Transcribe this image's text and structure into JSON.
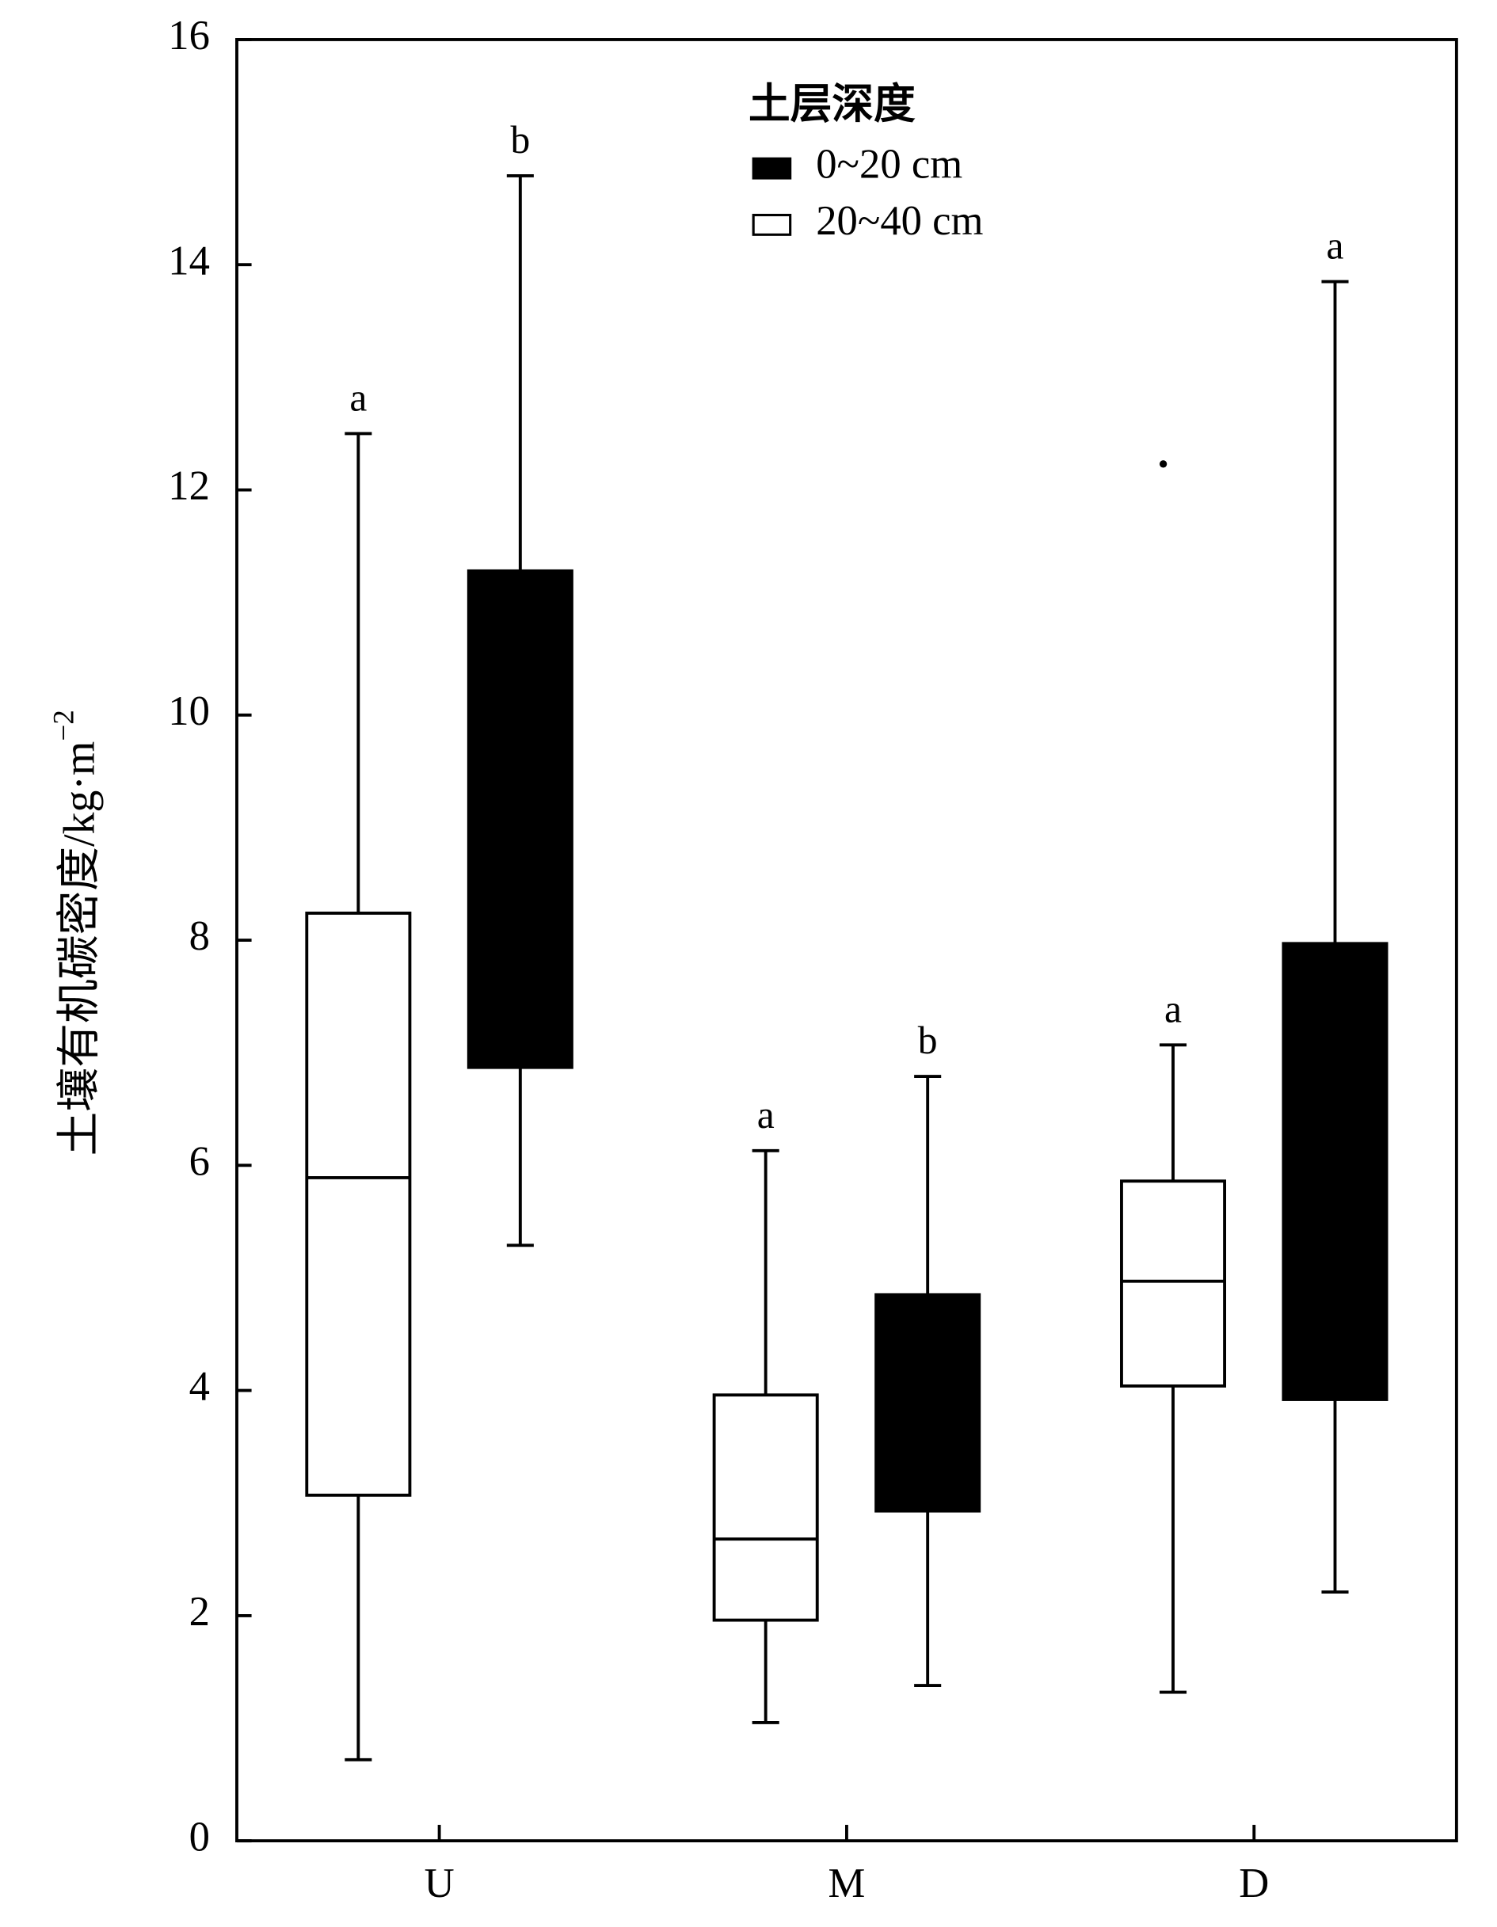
{
  "chart_data": {
    "type": "box",
    "y_label": "土壤有机碳密度/kg·m",
    "y_label_sup": "−2",
    "legend_title": "土层深度",
    "categories": [
      "U",
      "M",
      "D"
    ],
    "ylim": [
      0,
      16
    ],
    "yticks": [
      0,
      2,
      4,
      6,
      8,
      10,
      12,
      14,
      16
    ],
    "series": [
      {
        "name": "0~20 cm",
        "color": "#000000",
        "whisker_low": [
          5.29,
          1.38,
          2.21
        ],
        "q1": [
          6.87,
          2.93,
          3.92
        ],
        "median": [
          null,
          null,
          null
        ],
        "q3": [
          11.28,
          4.85,
          7.97
        ],
        "whisker_high": [
          14.79,
          6.79,
          13.85
        ],
        "outliers": [
          [],
          [],
          []
        ],
        "letters": [
          "b",
          "b",
          "a"
        ]
      },
      {
        "name": "20~40 cm",
        "color": "#ffffff",
        "whisker_low": [
          0.72,
          1.05,
          1.32
        ],
        "q1": [
          3.07,
          1.96,
          4.04
        ],
        "median": [
          5.89,
          2.68,
          4.97
        ],
        "q3": [
          8.24,
          3.96,
          5.86
        ],
        "whisker_high": [
          12.5,
          6.13,
          7.07
        ],
        "outliers": [
          [],
          [],
          [
            12.23
          ]
        ],
        "letters": [
          "a",
          "a",
          "a"
        ]
      }
    ]
  }
}
